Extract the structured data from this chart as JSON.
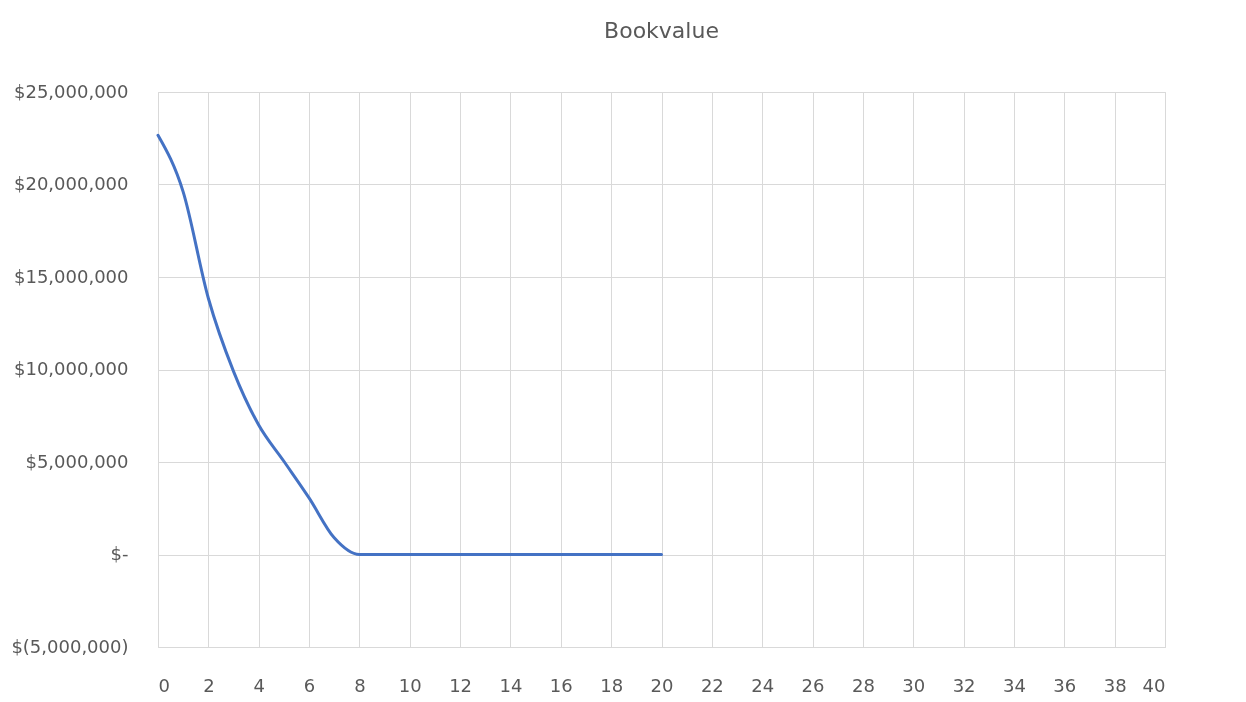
{
  "chart_data": {
    "type": "line",
    "title": "Bookvalue",
    "x": [
      0,
      1,
      2,
      3,
      4,
      5,
      6,
      7,
      8,
      9,
      10,
      11,
      12,
      13,
      14,
      15,
      16,
      17,
      18,
      19,
      20
    ],
    "series": [
      {
        "color": "#4472c4",
        "values": [
          22660000,
          19600000,
          13850000,
          9900000,
          7000000,
          5040000,
          3060000,
          900000,
          0,
          0,
          0,
          0,
          0,
          0,
          0,
          0,
          0,
          0,
          0,
          0,
          0
        ]
      }
    ],
    "xlim": [
      0,
      40
    ],
    "xticks": [
      0,
      2,
      4,
      6,
      8,
      10,
      12,
      14,
      16,
      18,
      20,
      22,
      24,
      26,
      28,
      30,
      32,
      34,
      36,
      38,
      40
    ],
    "ylim": [
      -5000000,
      25000000
    ],
    "yticks": [
      {
        "value": -5000000,
        "label": "$(5,000,000)"
      },
      {
        "value": 0,
        "label": "$-"
      },
      {
        "value": 5000000,
        "label": "$5,000,000"
      },
      {
        "value": 10000000,
        "label": "$10,000,000"
      },
      {
        "value": 15000000,
        "label": "$15,000,000"
      },
      {
        "value": 20000000,
        "label": "$20,000,000"
      },
      {
        "value": 25000000,
        "label": "$25,000,000"
      }
    ],
    "grid": true,
    "line_style": "solid",
    "marker": "none"
  }
}
